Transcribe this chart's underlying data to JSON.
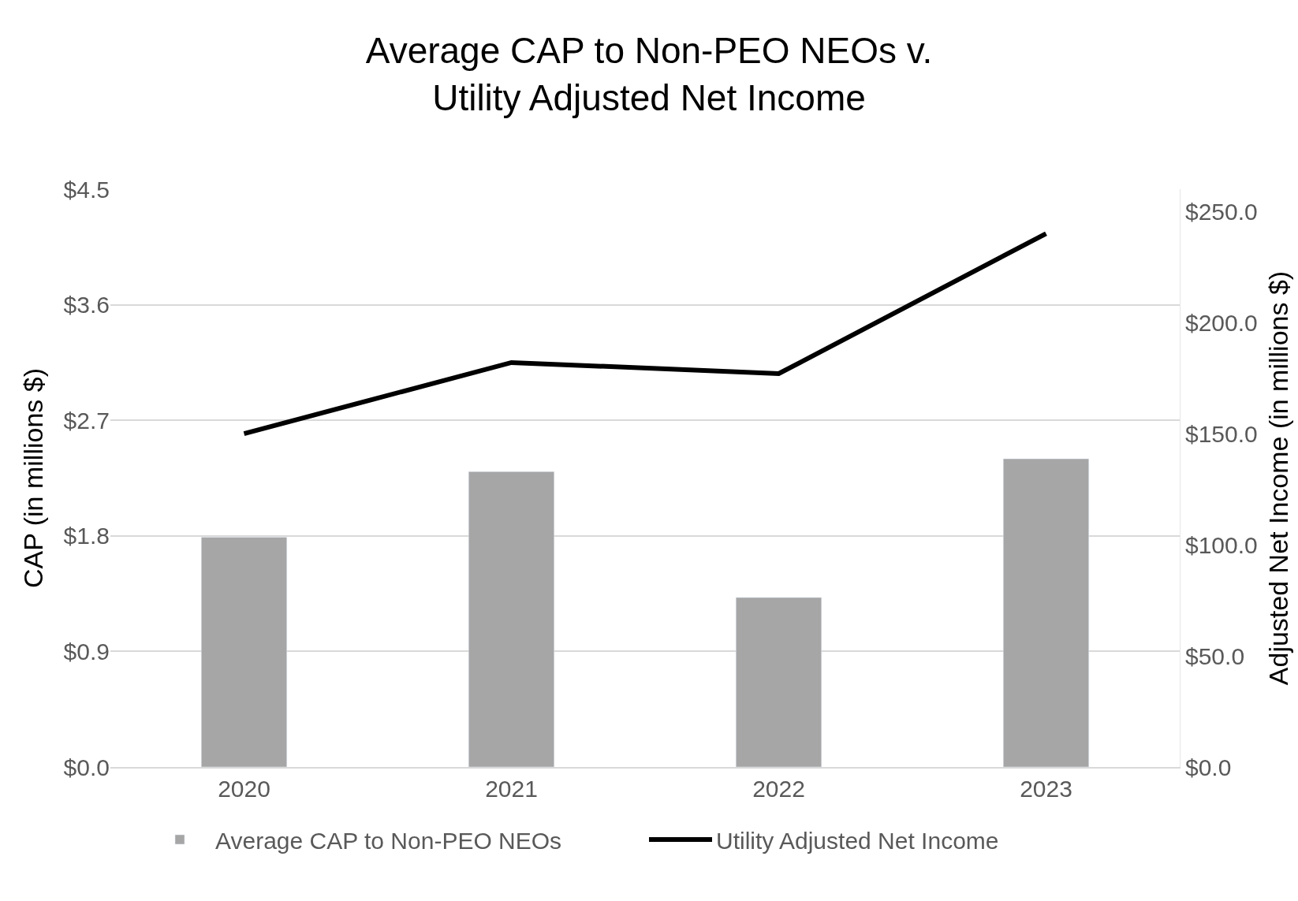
{
  "chart_data": {
    "type": "bar",
    "title": "Average CAP to Non-PEO NEOs v.\nUtility Adjusted Net Income",
    "categories": [
      "2020",
      "2021",
      "2022",
      "2023"
    ],
    "series": [
      {
        "name": "Average CAP to Non-PEO NEOs",
        "color": "#a6a6a6",
        "values": [
          1.79,
          2.3,
          1.32,
          2.4
        ]
      },
      {
        "name": "Utility Adjusted Net Income",
        "type": "line",
        "axis": "y2",
        "color": "#000000",
        "values": [
          150,
          182,
          177,
          240
        ]
      }
    ],
    "ylabel": "CAP (in millions $)",
    "y2label": "Adjusted Net Income (in millions $)",
    "ylim": [
      0,
      4.5
    ],
    "yticks": [
      {
        "value": 0,
        "label": "$0.0"
      },
      {
        "value": 0.9,
        "label": "$0.9"
      },
      {
        "value": 1.8,
        "label": "$1.8"
      },
      {
        "value": 2.7,
        "label": "$2.7"
      },
      {
        "value": 3.6,
        "label": "$3.6"
      },
      {
        "value": 4.5,
        "label": "$4.5"
      }
    ],
    "y2lim": [
      0,
      260
    ],
    "y2ticks": [
      {
        "value": 0,
        "label": "$0.0"
      },
      {
        "value": 50,
        "label": "$50.0"
      },
      {
        "value": 100,
        "label": "$100.0"
      },
      {
        "value": 150,
        "label": "$150.0"
      },
      {
        "value": 200,
        "label": "$200.0"
      },
      {
        "value": 250,
        "label": "$250.0"
      }
    ],
    "grid": "y",
    "legend": "bottom",
    "marker": "none",
    "line_style": "solid"
  }
}
